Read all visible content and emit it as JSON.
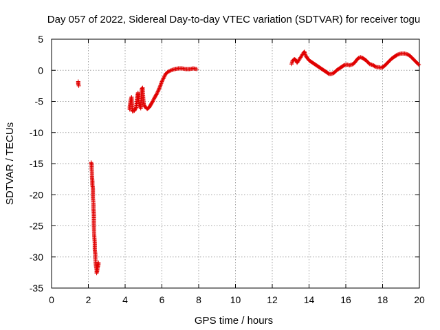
{
  "chart_data": {
    "type": "scatter",
    "title": "Day 057 of 2022, Sidereal Day-to-day VTEC variation (SDTVAR) for receiver togu",
    "xlabel": "GPS time / hours",
    "ylabel": "SDTVAR / TECUs",
    "xlim": [
      0,
      20
    ],
    "ylim": [
      -35,
      5
    ],
    "xticks": [
      0,
      2,
      4,
      6,
      8,
      10,
      12,
      14,
      16,
      18,
      20
    ],
    "yticks": [
      5,
      0,
      -5,
      -10,
      -15,
      -20,
      -25,
      -30,
      -35
    ],
    "grid": true,
    "marker": "+",
    "series": [
      {
        "name": "SDTVAR",
        "color": "#e00000",
        "segments": [
          [
            [
              1.45,
              -1.8
            ],
            [
              1.45,
              -2.2
            ],
            [
              1.48,
              -2.5
            ]
          ],
          [
            [
              2.15,
              -14.8
            ],
            [
              2.18,
              -15.2
            ],
            [
              2.18,
              -15.8
            ],
            [
              2.2,
              -16.5
            ],
            [
              2.2,
              -17.2
            ],
            [
              2.22,
              -17.8
            ],
            [
              2.22,
              -18.4
            ],
            [
              2.25,
              -19.0
            ],
            [
              2.25,
              -20.5
            ],
            [
              2.28,
              -21.5
            ],
            [
              2.28,
              -22.3
            ],
            [
              2.3,
              -23.2
            ],
            [
              2.3,
              -24.8
            ],
            [
              2.32,
              -26.5
            ],
            [
              2.35,
              -27.8
            ],
            [
              2.35,
              -28.8
            ],
            [
              2.38,
              -29.6
            ],
            [
              2.38,
              -30.3
            ],
            [
              2.4,
              -31.0
            ],
            [
              2.42,
              -31.6
            ],
            [
              2.45,
              -32.1
            ],
            [
              2.45,
              -32.6
            ],
            [
              2.48,
              -32.3
            ],
            [
              2.5,
              -31.8
            ],
            [
              2.55,
              -31.2
            ],
            [
              2.55,
              -30.9
            ]
          ],
          [
            [
              4.25,
              -6.3
            ],
            [
              4.25,
              -5.8
            ],
            [
              4.28,
              -5.3
            ],
            [
              4.3,
              -4.8
            ],
            [
              4.35,
              -4.3
            ],
            [
              4.4,
              -6.6
            ],
            [
              4.5,
              -6.5
            ],
            [
              4.6,
              -6.0
            ],
            [
              4.65,
              -4.5
            ],
            [
              4.7,
              -3.6
            ],
            [
              4.75,
              -5.2
            ],
            [
              4.8,
              -5.8
            ],
            [
              4.85,
              -6.1
            ],
            [
              4.9,
              -3.0
            ],
            [
              4.95,
              -2.8
            ],
            [
              5.0,
              -5.2
            ],
            [
              5.05,
              -5.8
            ],
            [
              5.1,
              -5.9
            ],
            [
              5.15,
              -6.0
            ],
            [
              5.2,
              -6.2
            ],
            [
              5.3,
              -6.0
            ],
            [
              5.4,
              -5.5
            ],
            [
              5.5,
              -5.0
            ],
            [
              5.6,
              -4.4
            ],
            [
              5.7,
              -3.9
            ],
            [
              5.8,
              -3.3
            ],
            [
              5.9,
              -2.6
            ],
            [
              6.0,
              -1.8
            ],
            [
              6.1,
              -1.2
            ],
            [
              6.2,
              -0.6
            ],
            [
              6.35,
              -0.2
            ],
            [
              6.5,
              0.0
            ],
            [
              6.7,
              0.2
            ],
            [
              6.9,
              0.3
            ],
            [
              7.1,
              0.3
            ],
            [
              7.3,
              0.2
            ],
            [
              7.5,
              0.2
            ],
            [
              7.7,
              0.3
            ],
            [
              7.9,
              0.2
            ]
          ],
          [
            [
              13.05,
              1.0
            ],
            [
              13.1,
              1.5
            ],
            [
              13.2,
              1.8
            ],
            [
              13.3,
              1.6
            ],
            [
              13.35,
              1.2
            ],
            [
              13.7,
              2.8
            ],
            [
              13.75,
              3.0
            ],
            [
              13.8,
              2.5
            ],
            [
              13.85,
              2.2
            ],
            [
              13.9,
              2.0
            ],
            [
              14.0,
              1.6
            ],
            [
              14.1,
              1.4
            ],
            [
              14.2,
              1.2
            ],
            [
              14.3,
              1.0
            ],
            [
              14.4,
              0.8
            ],
            [
              14.5,
              0.6
            ],
            [
              14.6,
              0.4
            ],
            [
              14.7,
              0.2
            ],
            [
              14.8,
              0.0
            ],
            [
              14.9,
              -0.2
            ],
            [
              15.0,
              -0.4
            ],
            [
              15.1,
              -0.6
            ],
            [
              15.2,
              -0.6
            ],
            [
              15.3,
              -0.5
            ],
            [
              15.4,
              -0.3
            ],
            [
              15.5,
              0.0
            ],
            [
              15.6,
              0.2
            ],
            [
              15.7,
              0.4
            ],
            [
              15.8,
              0.6
            ],
            [
              15.9,
              0.8
            ],
            [
              16.0,
              0.9
            ],
            [
              16.1,
              0.9
            ],
            [
              16.2,
              0.8
            ],
            [
              16.3,
              0.9
            ],
            [
              16.4,
              1.0
            ],
            [
              16.5,
              1.3
            ],
            [
              16.6,
              1.7
            ],
            [
              16.7,
              2.0
            ],
            [
              16.8,
              2.1
            ],
            [
              16.9,
              2.0
            ],
            [
              17.0,
              1.8
            ],
            [
              17.1,
              1.6
            ],
            [
              17.2,
              1.3
            ],
            [
              17.3,
              1.0
            ],
            [
              17.4,
              0.9
            ],
            [
              17.5,
              0.8
            ],
            [
              17.6,
              0.6
            ],
            [
              17.7,
              0.5
            ],
            [
              17.8,
              0.5
            ],
            [
              17.9,
              0.4
            ],
            [
              18.0,
              0.5
            ],
            [
              18.1,
              0.7
            ],
            [
              18.2,
              1.0
            ],
            [
              18.3,
              1.3
            ],
            [
              18.4,
              1.6
            ],
            [
              18.5,
              1.9
            ],
            [
              18.6,
              2.1
            ],
            [
              18.7,
              2.3
            ],
            [
              18.8,
              2.5
            ],
            [
              18.9,
              2.6
            ],
            [
              19.0,
              2.7
            ],
            [
              19.1,
              2.7
            ],
            [
              19.2,
              2.7
            ],
            [
              19.3,
              2.6
            ],
            [
              19.4,
              2.5
            ],
            [
              19.5,
              2.3
            ],
            [
              19.6,
              2.0
            ],
            [
              19.7,
              1.7
            ],
            [
              19.8,
              1.4
            ],
            [
              19.9,
              1.1
            ],
            [
              19.97,
              0.9
            ]
          ]
        ]
      }
    ]
  }
}
